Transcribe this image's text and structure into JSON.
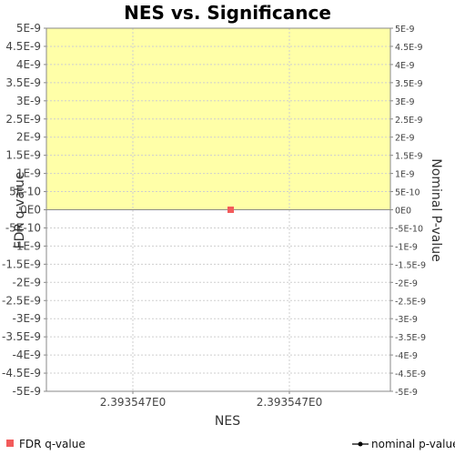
{
  "chart_data": {
    "type": "scatter",
    "title": "NES vs. Significance",
    "xlabel": "NES",
    "ylabel_left": "FDR q-value",
    "ylabel_right": "Nominal P-value",
    "ylim": [
      -5e-09,
      5e-09
    ],
    "y_ticks": [
      "5E-9",
      "4.5E-9",
      "4E-9",
      "3.5E-9",
      "3E-9",
      "2.5E-9",
      "2E-9",
      "1.5E-9",
      "1E-9",
      "5E-10",
      "0E0",
      "-5E-10",
      "-1E-9",
      "-1.5E-9",
      "-2E-9",
      "-2.5E-9",
      "-3E-9",
      "-3.5E-9",
      "-4E-9",
      "-4.5E-9",
      "-5E-9"
    ],
    "x_ticks": [
      "2.393547E0",
      "2.393547E0"
    ],
    "significance_band": {
      "from": 0,
      "to": 5e-09,
      "color": "#ffffa8"
    },
    "grid": true,
    "legend_position": "bottom",
    "series": [
      {
        "name": "FDR q-value",
        "color": "#f25b5b",
        "marker": "square",
        "points": [
          {
            "x": 2.393547,
            "y": 0
          }
        ]
      },
      {
        "name": "nominal p-value",
        "color": "#000000",
        "marker": "line-dot",
        "points": []
      }
    ]
  }
}
